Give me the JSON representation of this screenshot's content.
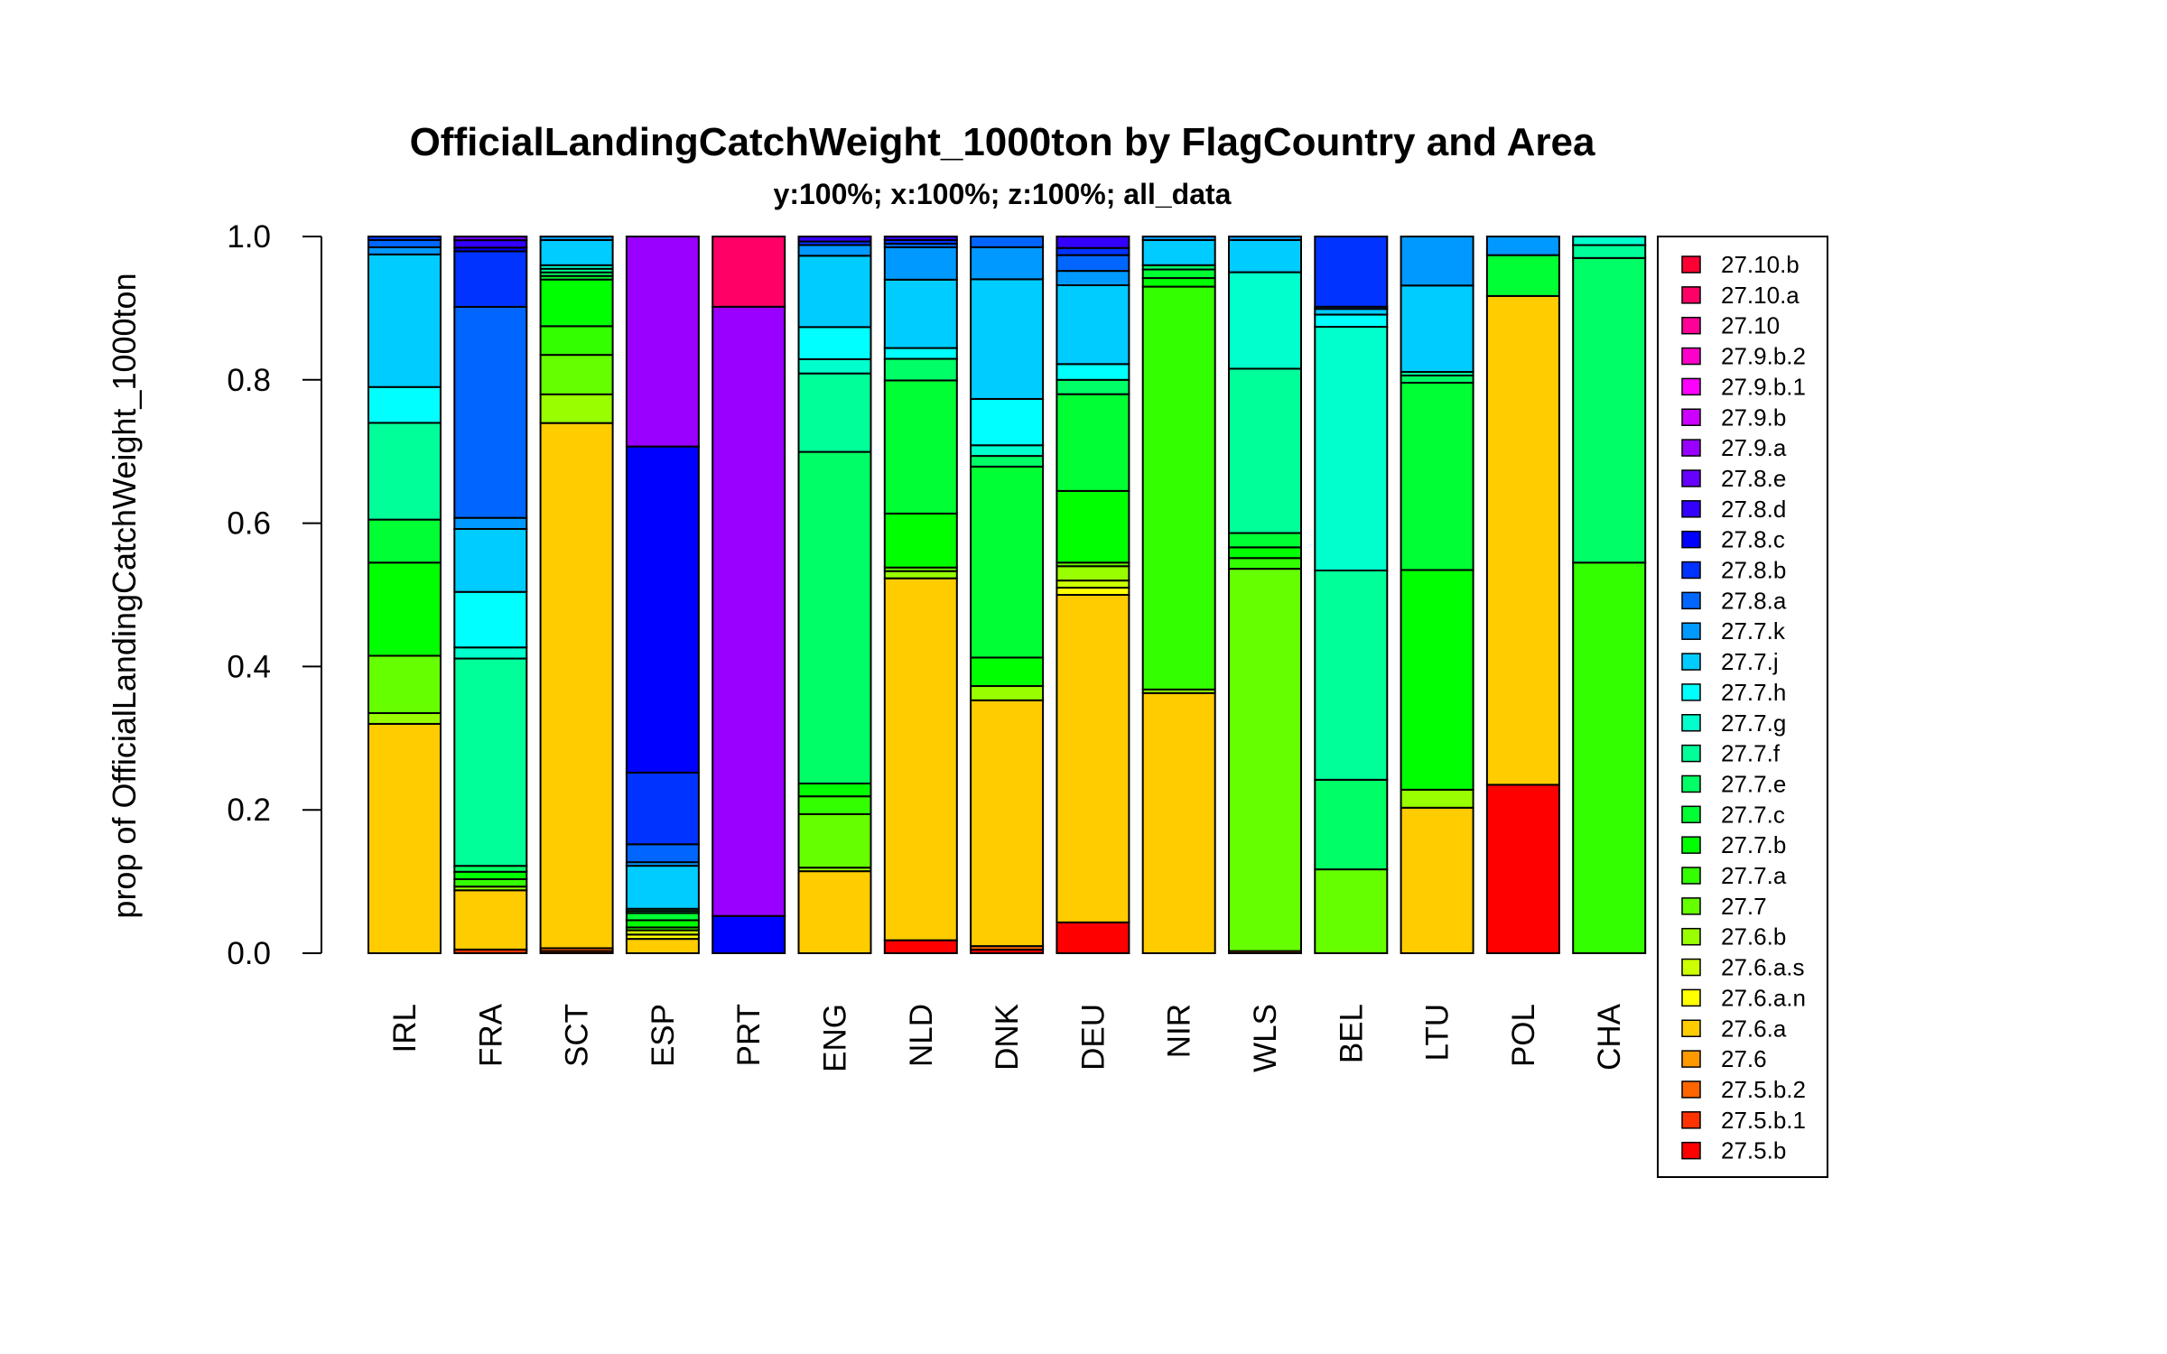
{
  "chart_data": {
    "type": "bar",
    "stacked": true,
    "normalized": true,
    "title": "OfficialLandingCatchWeight_1000ton by FlagCountry and Area",
    "subtitle": "y:100%; x:100%; z:100%; all_data",
    "ylabel": "prop of OfficialLandingCatchWeight_1000ton",
    "xlabel": "",
    "ylim": [
      0,
      1
    ],
    "yticks": [
      "0.0",
      "0.2",
      "0.4",
      "0.6",
      "0.8",
      "1.0"
    ],
    "grid": false,
    "legend_placement": "right",
    "categories": [
      "IRL",
      "FRA",
      "SCT",
      "ESP",
      "PRT",
      "ENG",
      "NLD",
      "DNK",
      "DEU",
      "NIR",
      "WLS",
      "BEL",
      "LTU",
      "POL",
      "CHA"
    ],
    "series": [
      {
        "name": "27.5.b",
        "color": "#FF0000",
        "values": [
          0,
          0,
          0,
          0,
          0,
          0,
          0.018,
          0.005,
          0.043,
          0,
          0,
          0,
          0,
          0.235,
          0
        ]
      },
      {
        "name": "27.5.b.1",
        "color": "#FF3300",
        "values": [
          0,
          0.005,
          0.003,
          0,
          0,
          0,
          0,
          0,
          0,
          0,
          0,
          0,
          0,
          0,
          0
        ]
      },
      {
        "name": "27.5.b.2",
        "color": "#FF6600",
        "values": [
          0,
          0,
          0.004,
          0,
          0,
          0,
          0,
          0.005,
          0,
          0,
          0,
          0,
          0,
          0,
          0
        ]
      },
      {
        "name": "27.6",
        "color": "#FF9900",
        "values": [
          0,
          0,
          0,
          0,
          0,
          0,
          0,
          0,
          0,
          0,
          0.003,
          0,
          0,
          0,
          0
        ]
      },
      {
        "name": "27.6.a",
        "color": "#FFCC00",
        "values": [
          0.32,
          0.08,
          0.732,
          0.02,
          0,
          0.115,
          0.503,
          0.345,
          0.457,
          0.363,
          0,
          0,
          0.202,
          0.682,
          0
        ]
      },
      {
        "name": "27.6.a.n",
        "color": "#FFFF00",
        "values": [
          0,
          0,
          0,
          0.006,
          0,
          0,
          0,
          0,
          0.01,
          0,
          0,
          0,
          0,
          0,
          0
        ]
      },
      {
        "name": "27.6.a.s",
        "color": "#CCFF00",
        "values": [
          0,
          0,
          0,
          0.006,
          0,
          0,
          0,
          0,
          0.01,
          0,
          0,
          0,
          0,
          0,
          0
        ]
      },
      {
        "name": "27.6.b",
        "color": "#99FF00",
        "values": [
          0.015,
          0.005,
          0.04,
          0,
          0,
          0.005,
          0.01,
          0.02,
          0.02,
          0.005,
          0,
          0,
          0.025,
          0,
          0
        ]
      },
      {
        "name": "27.7",
        "color": "#66FF00",
        "values": [
          0.08,
          0,
          0.055,
          0,
          0,
          0.075,
          0.005,
          0,
          0.005,
          0,
          0.535,
          0.117,
          0,
          0,
          0
        ]
      },
      {
        "name": "27.7.a",
        "color": "#33FF00",
        "values": [
          0,
          0.01,
          0.04,
          0.004,
          0,
          0.025,
          0,
          0,
          0,
          0.562,
          0.015,
          0,
          0,
          0,
          0.545
        ]
      },
      {
        "name": "27.7.b",
        "color": "#00FF00",
        "values": [
          0.13,
          0.01,
          0.065,
          0.01,
          0,
          0.018,
          0.075,
          0.04,
          0.1,
          0.012,
          0.015,
          0,
          0.305,
          0,
          0
        ]
      },
      {
        "name": "27.7.c",
        "color": "#00FF33",
        "values": [
          0.06,
          0,
          0.005,
          0.01,
          0,
          0,
          0.185,
          0.268,
          0.135,
          0.012,
          0.02,
          0,
          0.26,
          0.057,
          0
        ]
      },
      {
        "name": "27.7.e",
        "color": "#00FF66",
        "values": [
          0,
          0.008,
          0.005,
          0.003,
          0,
          0.465,
          0.03,
          0.015,
          0.02,
          0.006,
          0,
          0.125,
          0.01,
          0,
          0.425
        ]
      },
      {
        "name": "27.7.f",
        "color": "#00FF99",
        "values": [
          0.135,
          0.28,
          0.005,
          0.003,
          0,
          0.11,
          0,
          0,
          0,
          0,
          0.23,
          0.292,
          0.005,
          0,
          0.018
        ]
      },
      {
        "name": "27.7.g",
        "color": "#00FFCC",
        "values": [
          0,
          0.015,
          0.005,
          0,
          0,
          0.02,
          0,
          0.015,
          0,
          0,
          0.135,
          0.34,
          0,
          0,
          0.012
        ]
      },
      {
        "name": "27.7.h",
        "color": "#00FFFF",
        "values": [
          0.05,
          0.075,
          0,
          0,
          0,
          0.045,
          0.015,
          0.065,
          0.022,
          0,
          0,
          0.017,
          0,
          0,
          0
        ]
      },
      {
        "name": "27.7.j",
        "color": "#00CCFF",
        "values": [
          0.185,
          0.085,
          0.035,
          0.06,
          0,
          0.1,
          0.095,
          0.168,
          0.11,
          0.035,
          0.045,
          0.008,
          0.12,
          0,
          0
        ]
      },
      {
        "name": "27.7.k",
        "color": "#0099FF",
        "values": [
          0.01,
          0.015,
          0.005,
          0.005,
          0,
          0.015,
          0.045,
          0.045,
          0.02,
          0.005,
          0.005,
          0,
          0.068,
          0.026,
          0
        ]
      },
      {
        "name": "27.8.a",
        "color": "#0066FF",
        "values": [
          0.01,
          0.285,
          0,
          0.025,
          0,
          0,
          0.005,
          0.015,
          0.022,
          0,
          0,
          0.003,
          0,
          0,
          0
        ]
      },
      {
        "name": "27.8.b",
        "color": "#0033FF",
        "values": [
          0.005,
          0.075,
          0,
          0.1,
          0,
          0.005,
          0.005,
          0,
          0.01,
          0,
          0,
          0.098,
          0,
          0,
          0
        ]
      },
      {
        "name": "27.8.c",
        "color": "#0000FF",
        "values": [
          0,
          0.005,
          0,
          0.455,
          0.052,
          0,
          0,
          0,
          0,
          0,
          0,
          0,
          0,
          0,
          0
        ]
      },
      {
        "name": "27.8.d",
        "color": "#3300FF",
        "values": [
          0,
          0.01,
          0,
          0,
          0,
          0.007,
          0.005,
          0,
          0.016,
          0,
          0,
          0,
          0,
          0,
          0
        ]
      },
      {
        "name": "27.8.e",
        "color": "#6600FF",
        "values": [
          0,
          0.005,
          0,
          0,
          0,
          0,
          0,
          0,
          0,
          0,
          0,
          0,
          0,
          0,
          0
        ]
      },
      {
        "name": "27.9.a",
        "color": "#9900FF",
        "values": [
          0,
          0,
          0,
          0.293,
          0.85,
          0,
          0,
          0,
          0,
          0,
          0,
          0,
          0,
          0,
          0
        ]
      },
      {
        "name": "27.9.b",
        "color": "#CC00FF",
        "values": [
          0,
          0,
          0,
          0,
          0,
          0,
          0,
          0,
          0,
          0,
          0,
          0,
          0,
          0,
          0
        ]
      },
      {
        "name": "27.9.b.1",
        "color": "#FF00FF",
        "values": [
          0,
          0,
          0,
          0,
          0,
          0,
          0,
          0,
          0,
          0,
          0,
          0,
          0,
          0,
          0
        ]
      },
      {
        "name": "27.9.b.2",
        "color": "#FF00CC",
        "values": [
          0,
          0,
          0,
          0,
          0,
          0,
          0,
          0,
          0,
          0,
          0,
          0,
          0,
          0,
          0
        ]
      },
      {
        "name": "27.10",
        "color": "#FF0099",
        "values": [
          0,
          0,
          0,
          0,
          0,
          0,
          0,
          0,
          0,
          0,
          0,
          0,
          0,
          0,
          0
        ]
      },
      {
        "name": "27.10.a",
        "color": "#FF0066",
        "values": [
          0,
          0,
          0,
          0,
          0.098,
          0,
          0,
          0,
          0,
          0,
          0,
          0,
          0,
          0,
          0
        ]
      },
      {
        "name": "27.10.b",
        "color": "#FF0033",
        "values": [
          0,
          0,
          0,
          0,
          0,
          0,
          0,
          0,
          0,
          0,
          0,
          0,
          0,
          0,
          0
        ]
      }
    ]
  }
}
